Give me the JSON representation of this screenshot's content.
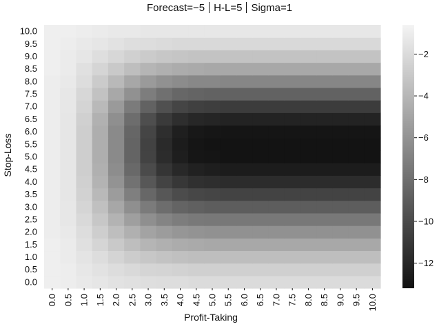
{
  "chart_data": {
    "type": "heatmap",
    "title_parts": [
      "Forecast=−5",
      "H-L=5",
      "Sigma=1"
    ],
    "xlabel": "Profit-Taking",
    "ylabel": "Stop-Loss",
    "x_ticks": [
      "0.0",
      "0.5",
      "1.0",
      "1.5",
      "2.0",
      "2.5",
      "3.0",
      "3.5",
      "4.0",
      "4.5",
      "5.0",
      "5.5",
      "6.0",
      "6.5",
      "7.0",
      "7.5",
      "8.0",
      "8.5",
      "9.0",
      "9.5",
      "10.0"
    ],
    "y_ticks": [
      "0.0",
      "0.5",
      "1.0",
      "1.5",
      "2.0",
      "2.5",
      "3.0",
      "3.5",
      "4.0",
      "4.5",
      "5.0",
      "5.5",
      "6.0",
      "6.5",
      "7.0",
      "7.5",
      "8.0",
      "8.5",
      "9.0",
      "9.5",
      "10.0"
    ],
    "x_range": [
      0,
      10
    ],
    "y_range": [
      0,
      10
    ],
    "colorbar": {
      "ticks": [
        "−2",
        "−4",
        "−6",
        "−8",
        "−10",
        "−12"
      ],
      "tick_values": [
        -2,
        -4,
        -6,
        -8,
        -10,
        -12
      ],
      "range": [
        -13.2,
        -0.6
      ],
      "colormap": "gray",
      "low_color": "#111111",
      "high_color": "#f4f4f4"
    },
    "description_grid": {
      "profit_taking_columns": [
        0.0,
        0.5,
        1.0,
        1.5,
        2.0,
        2.5,
        3.0,
        3.5,
        4.0,
        4.5,
        5.0,
        5.5,
        6.0,
        6.5,
        7.0,
        7.5,
        8.0,
        8.5,
        9.0,
        9.5,
        10.0
      ],
      "stop_loss_rows": [
        0.0,
        0.5,
        1.0,
        1.5,
        2.0,
        2.5,
        3.0,
        3.5,
        4.0,
        4.5,
        5.0,
        5.5,
        6.0,
        6.5,
        7.0,
        7.5,
        8.0,
        8.5,
        9.0,
        9.5,
        10.0
      ],
      "values": [
        [
          -0.9,
          -1.0,
          -1.2,
          -1.4,
          -1.6,
          -1.7,
          -1.8,
          -1.9,
          -1.9,
          -2.0,
          -2.0,
          -2.0,
          -2.0,
          -2.0,
          -2.0,
          -2.0,
          -2.0,
          -2.0,
          -2.0,
          -2.0,
          -2.0
        ],
        [
          -0.9,
          -1.0,
          -1.3,
          -1.6,
          -1.9,
          -2.1,
          -2.3,
          -2.4,
          -2.5,
          -2.6,
          -2.6,
          -2.6,
          -2.6,
          -2.6,
          -2.6,
          -2.6,
          -2.6,
          -2.6,
          -2.6,
          -2.6,
          -2.6
        ],
        [
          -0.9,
          -1.1,
          -1.5,
          -1.9,
          -2.4,
          -2.8,
          -3.1,
          -3.3,
          -3.5,
          -3.6,
          -3.6,
          -3.6,
          -3.6,
          -3.6,
          -3.6,
          -3.6,
          -3.6,
          -3.6,
          -3.6,
          -3.6,
          -3.6
        ],
        [
          -0.9,
          -1.1,
          -1.7,
          -2.3,
          -3.0,
          -3.6,
          -4.1,
          -4.4,
          -4.6,
          -4.7,
          -4.8,
          -4.8,
          -4.8,
          -4.8,
          -4.8,
          -4.8,
          -4.8,
          -4.8,
          -4.8,
          -4.8,
          -4.8
        ],
        [
          -1.0,
          -1.2,
          -1.9,
          -2.7,
          -3.6,
          -4.4,
          -5.1,
          -5.5,
          -5.8,
          -6.0,
          -6.1,
          -6.1,
          -6.1,
          -6.1,
          -6.1,
          -6.1,
          -6.1,
          -6.1,
          -6.1,
          -6.1,
          -6.1
        ],
        [
          -1.0,
          -1.3,
          -2.1,
          -3.1,
          -4.2,
          -5.3,
          -6.2,
          -6.8,
          -7.2,
          -7.4,
          -7.5,
          -7.5,
          -7.5,
          -7.5,
          -7.5,
          -7.5,
          -7.5,
          -7.5,
          -7.5,
          -7.5,
          -7.5
        ],
        [
          -1.0,
          -1.3,
          -2.3,
          -3.5,
          -4.9,
          -6.2,
          -7.3,
          -8.1,
          -8.6,
          -8.8,
          -9.0,
          -9.0,
          -9.0,
          -9.0,
          -9.0,
          -9.0,
          -9.0,
          -9.0,
          -9.0,
          -9.0,
          -9.0
        ],
        [
          -1.0,
          -1.4,
          -2.5,
          -3.9,
          -5.5,
          -7.1,
          -8.4,
          -9.3,
          -9.9,
          -10.2,
          -10.3,
          -10.4,
          -10.4,
          -10.4,
          -10.4,
          -10.4,
          -10.4,
          -10.4,
          -10.4,
          -10.4,
          -10.4
        ],
        [
          -1.0,
          -1.4,
          -2.6,
          -4.2,
          -6.0,
          -7.8,
          -9.3,
          -10.4,
          -11.1,
          -11.5,
          -11.6,
          -11.7,
          -11.7,
          -11.7,
          -11.7,
          -11.7,
          -11.7,
          -11.7,
          -11.7,
          -11.7,
          -11.7
        ],
        [
          -1.0,
          -1.4,
          -2.7,
          -4.4,
          -6.3,
          -8.3,
          -10.0,
          -11.2,
          -11.9,
          -12.3,
          -12.5,
          -12.6,
          -12.6,
          -12.6,
          -12.6,
          -12.6,
          -12.6,
          -12.6,
          -12.6,
          -12.6,
          -12.6
        ],
        [
          -1.0,
          -1.4,
          -2.7,
          -4.5,
          -6.5,
          -8.6,
          -10.4,
          -11.7,
          -12.5,
          -12.9,
          -13.0,
          -13.1,
          -13.1,
          -13.1,
          -13.1,
          -13.1,
          -13.1,
          -13.1,
          -13.1,
          -13.1,
          -13.1
        ],
        [
          -1.0,
          -1.4,
          -2.7,
          -4.5,
          -6.5,
          -8.6,
          -10.5,
          -11.8,
          -12.6,
          -13.0,
          -13.1,
          -13.1,
          -13.1,
          -13.1,
          -13.1,
          -13.1,
          -13.1,
          -13.1,
          -13.1,
          -13.1,
          -13.1
        ],
        [
          -1.0,
          -1.4,
          -2.7,
          -4.5,
          -6.5,
          -8.5,
          -10.3,
          -11.6,
          -12.4,
          -12.8,
          -12.9,
          -13.0,
          -13.0,
          -13.0,
          -13.0,
          -13.0,
          -13.0,
          -13.0,
          -13.0,
          -13.0,
          -13.0
        ],
        [
          -1.0,
          -1.4,
          -2.6,
          -4.3,
          -6.2,
          -8.1,
          -9.8,
          -10.9,
          -11.6,
          -12.0,
          -12.1,
          -12.2,
          -12.2,
          -12.2,
          -12.2,
          -12.2,
          -12.2,
          -12.2,
          -12.2,
          -12.2,
          -12.2
        ],
        [
          -1.0,
          -1.3,
          -2.4,
          -3.9,
          -5.6,
          -7.3,
          -8.7,
          -9.7,
          -10.3,
          -10.6,
          -10.7,
          -10.8,
          -10.8,
          -10.8,
          -10.8,
          -10.8,
          -10.8,
          -10.8,
          -10.8,
          -10.8,
          -10.8
        ],
        [
          -1.0,
          -1.3,
          -2.2,
          -3.4,
          -4.8,
          -6.1,
          -7.2,
          -7.9,
          -8.4,
          -8.6,
          -8.7,
          -8.7,
          -8.7,
          -8.7,
          -8.7,
          -8.7,
          -8.7,
          -8.7,
          -8.7,
          -8.7,
          -8.7
        ],
        [
          -1.0,
          -1.2,
          -1.9,
          -2.9,
          -3.9,
          -4.9,
          -5.6,
          -6.1,
          -6.4,
          -6.6,
          -6.6,
          -6.7,
          -6.7,
          -6.7,
          -6.7,
          -6.7,
          -6.7,
          -6.7,
          -6.7,
          -6.7,
          -6.7
        ],
        [
          -0.9,
          -1.1,
          -1.7,
          -2.3,
          -3.0,
          -3.6,
          -4.1,
          -4.4,
          -4.6,
          -4.7,
          -4.8,
          -4.8,
          -4.8,
          -4.8,
          -4.8,
          -4.8,
          -4.8,
          -4.8,
          -4.8,
          -4.8,
          -4.8
        ],
        [
          -0.9,
          -1.1,
          -1.4,
          -1.8,
          -2.2,
          -2.6,
          -2.9,
          -3.1,
          -3.2,
          -3.3,
          -3.3,
          -3.3,
          -3.3,
          -3.3,
          -3.3,
          -3.3,
          -3.3,
          -3.3,
          -3.3,
          -3.3,
          -3.3
        ],
        [
          -0.9,
          -1.0,
          -1.2,
          -1.4,
          -1.6,
          -1.8,
          -1.9,
          -2.0,
          -2.1,
          -2.1,
          -2.1,
          -2.1,
          -2.1,
          -2.1,
          -2.1,
          -2.1,
          -2.1,
          -2.1,
          -2.1,
          -2.1,
          -2.1
        ],
        [
          -0.9,
          -0.9,
          -1.0,
          -1.1,
          -1.2,
          -1.2,
          -1.3,
          -1.3,
          -1.3,
          -1.3,
          -1.3,
          -1.3,
          -1.3,
          -1.3,
          -1.3,
          -1.3,
          -1.3,
          -1.3,
          -1.3,
          -1.3,
          -1.3
        ]
      ]
    }
  }
}
